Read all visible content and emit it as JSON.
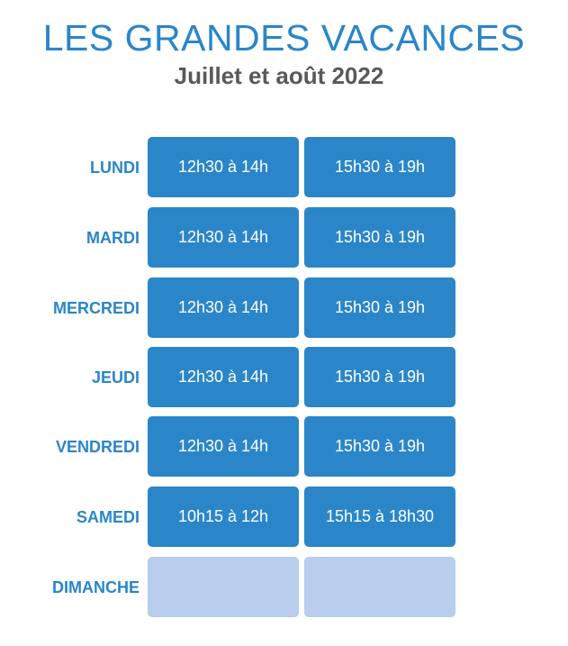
{
  "header": {
    "title": "LES GRANDES VACANCES",
    "subtitle": "Juillet et août 2022"
  },
  "colors": {
    "accent": "#2a86c9",
    "empty_slot": "#b9cdec",
    "subtitle": "#5a5858"
  },
  "schedule": [
    {
      "day": "LUNDI",
      "slot1": "12h30 à 14h",
      "slot2": "15h30 à 19h"
    },
    {
      "day": "MARDI",
      "slot1": "12h30 à 14h",
      "slot2": "15h30 à 19h"
    },
    {
      "day": "MERCREDI",
      "slot1": "12h30 à 14h",
      "slot2": "15h30 à 19h"
    },
    {
      "day": "JEUDI",
      "slot1": "12h30 à 14h",
      "slot2": "15h30 à 19h"
    },
    {
      "day": "VENDREDI",
      "slot1": "12h30 à 14h",
      "slot2": "15h30 à 19h"
    },
    {
      "day": "SAMEDI",
      "slot1": "10h15 à 12h",
      "slot2": "15h15 à 18h30"
    },
    {
      "day": "DIMANCHE",
      "slot1": "",
      "slot2": ""
    }
  ]
}
